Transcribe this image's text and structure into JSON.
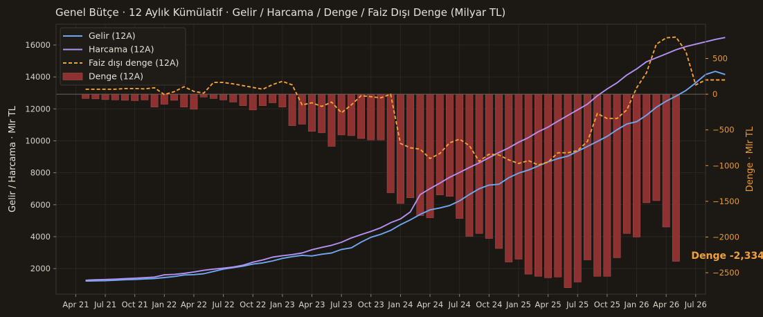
{
  "chart_data": {
    "type": "bar+line",
    "title": "Genel Bütçe · 12 Aylık Kümülatif · Gelir / Harcama / Denge / Faiz Dışı Denge (Milyar TL)",
    "ylabel_left": "Gelir / Harcama · Mlr TL",
    "ylabel_right": "Denge · Mlr TL",
    "ylim_left": [
      400,
      17300
    ],
    "ylim_right": [
      -2800,
      980
    ],
    "yticks_left": [
      2000,
      4000,
      6000,
      8000,
      10000,
      12000,
      14000,
      16000
    ],
    "yticks_right": [
      -2500,
      -2000,
      -1500,
      -1000,
      -500,
      0,
      500
    ],
    "ytick_labels_left": [
      "2000",
      "4000",
      "6000",
      "8000",
      "10000",
      "12000",
      "14000",
      "16000"
    ],
    "ytick_labels_right": [
      "−2500",
      "−2000",
      "−1500",
      "−1000",
      "−500",
      "0",
      "500"
    ],
    "xticks": [
      "Apr 21",
      "Jul 21",
      "Oct 21",
      "Jan 22",
      "Apr 22",
      "Jul 22",
      "Oct 22",
      "Jan 23",
      "Apr 23",
      "Jul 23",
      "Oct 23",
      "Jan 24",
      "Apr 24",
      "Jul 24",
      "Oct 24",
      "Jan 25",
      "Apr 25",
      "Jul 25",
      "Oct 25",
      "Jan 26",
      "Apr 26",
      "Jul 26"
    ],
    "xtick_months": [
      -1,
      2,
      5,
      8,
      11,
      14,
      17,
      20,
      23,
      26,
      29,
      32,
      35,
      38,
      41,
      44,
      47,
      50,
      53,
      56,
      59,
      62
    ],
    "x_start": "May 2021",
    "xlim_months": [
      -3,
      63
    ],
    "legend_position": "top-left",
    "colors": {
      "gelir": "#6ea8f0",
      "harcama": "#b292f2",
      "faiz": "#f5a338",
      "denge": "#8e3131",
      "background": "#1c1915",
      "grid": "#2c2925"
    },
    "series": [
      {
        "name": "Gelir (12A)",
        "kind": "line",
        "axis": "left",
        "values": [
          1220,
          1230,
          1240,
          1270,
          1300,
          1320,
          1350,
          1380,
          1440,
          1500,
          1600,
          1620,
          1680,
          1820,
          1970,
          2060,
          2150,
          2280,
          2360,
          2480,
          2640,
          2750,
          2830,
          2790,
          2900,
          2980,
          3200,
          3300,
          3660,
          3960,
          4150,
          4390,
          4750,
          5050,
          5390,
          5680,
          5800,
          5950,
          6240,
          6640,
          7000,
          7230,
          7280,
          7690,
          7980,
          8170,
          8430,
          8680,
          8890,
          9040,
          9350,
          9650,
          9960,
          10280,
          10690,
          11050,
          11200,
          11600,
          12100,
          12480,
          12800,
          13150,
          13630,
          14150,
          14350,
          14150
        ]
      },
      {
        "name": "Harcama (12A)",
        "kind": "line",
        "axis": "left",
        "values": [
          1270,
          1300,
          1320,
          1340,
          1370,
          1400,
          1430,
          1470,
          1610,
          1640,
          1700,
          1790,
          1890,
          1970,
          2030,
          2100,
          2210,
          2400,
          2540,
          2720,
          2810,
          2880,
          2980,
          3180,
          3330,
          3460,
          3650,
          3920,
          4130,
          4330,
          4560,
          4870,
          5110,
          5550,
          6630,
          7010,
          7350,
          7720,
          8020,
          8330,
          8620,
          8940,
          9270,
          9560,
          9910,
          10200,
          10570,
          10860,
          11230,
          11590,
          11940,
          12300,
          12820,
          13250,
          13630,
          14120,
          14500,
          14950,
          15200,
          15450,
          15700,
          15900,
          16050,
          16200,
          16350,
          16470
        ]
      },
      {
        "name": "Faiz dışı denge (12A)",
        "kind": "line",
        "dashed": true,
        "axis": "right",
        "values": [
          70,
          70,
          70,
          70,
          80,
          80,
          75,
          90,
          -5,
          35,
          105,
          40,
          15,
          165,
          165,
          145,
          120,
          95,
          70,
          135,
          180,
          130,
          -150,
          -120,
          -170,
          -110,
          -260,
          -150,
          -20,
          -35,
          -50,
          0,
          -690,
          -750,
          -770,
          -900,
          -830,
          -680,
          -630,
          -720,
          -940,
          -840,
          -850,
          -920,
          -970,
          -930,
          -990,
          -950,
          -820,
          -820,
          -790,
          -660,
          -270,
          -340,
          -340,
          -220,
          90,
          300,
          700,
          790,
          800,
          600,
          130,
          200,
          200,
          200
        ]
      },
      {
        "name": "Denge (12A)",
        "kind": "bar",
        "axis": "right",
        "values": [
          -60,
          -65,
          -75,
          -80,
          -85,
          -90,
          -80,
          -180,
          -140,
          -85,
          -180,
          -210,
          -40,
          -60,
          -80,
          -110,
          -160,
          -220,
          -160,
          -120,
          -180,
          -440,
          -420,
          -520,
          -540,
          -730,
          -570,
          -580,
          -620,
          -640,
          -640,
          -1380,
          -1530,
          -1450,
          -1700,
          -1730,
          -1410,
          -1430,
          -1740,
          -1990,
          -1950,
          -2020,
          -2160,
          -2350,
          -2310,
          -2520,
          -2550,
          -2570,
          -2560,
          -2710,
          -2630,
          -2320,
          -2550,
          -2550,
          -2290,
          -1950,
          -2000,
          -1520,
          -1490,
          -1860,
          -2340
        ]
      }
    ],
    "annotations": [
      {
        "text": "Denge -2,334",
        "x_month": 60,
        "y_right": -2334
      }
    ]
  }
}
